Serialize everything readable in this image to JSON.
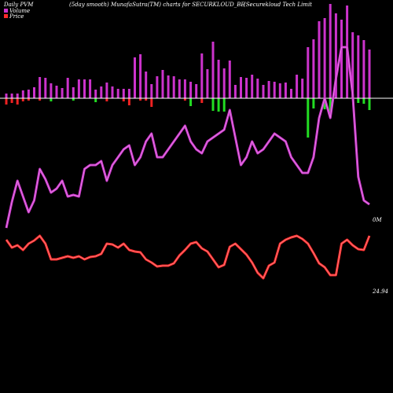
{
  "header": {
    "left": "Daily PVM",
    "center": "(5day smooth) MunafaSutra(TM) charts for SECURKLOUD_BE",
    "right": "(Securekloud Tech Limit"
  },
  "legend": {
    "volume_label": "Volume",
    "price_label": "Price",
    "volume_color": "#cc33cc",
    "price_color": "#ff2a2a"
  },
  "end_labels": {
    "volume_end": "0M",
    "price_end": "24.94"
  },
  "colors": {
    "background": "#000000",
    "up_bar": "#cc33cc",
    "positive_diff": "#22dd22",
    "negative_diff": "#ee2222",
    "volume_line": "#cc33cc",
    "price_line": "#ff2a2a",
    "baseline": "#ffffff"
  },
  "chart_data": {
    "type": "bar",
    "title": "",
    "n_points": 66,
    "volume_bars": [
      6,
      6,
      6,
      10,
      11,
      14,
      27,
      26,
      19,
      16,
      13,
      26,
      14,
      24,
      24,
      24,
      11,
      15,
      20,
      15,
      12,
      12,
      12,
      52,
      56,
      34,
      18,
      28,
      36,
      29,
      28,
      24,
      24,
      21,
      18,
      57,
      37,
      72,
      49,
      38,
      48,
      17,
      27,
      26,
      30,
      25,
      17,
      22,
      21,
      19,
      20,
      12,
      30,
      25,
      65,
      75,
      98,
      102,
      120,
      108,
      100,
      118,
      84,
      80,
      74,
      62
    ],
    "diff_bars": [
      -8,
      -6,
      -8,
      -4,
      -3,
      0,
      -3,
      0,
      4,
      0,
      0,
      0,
      3,
      0,
      0,
      0,
      5,
      0,
      -4,
      0,
      0,
      -4,
      -9,
      0,
      -3,
      -3,
      -11,
      0,
      0,
      0,
      0,
      0,
      -3,
      10,
      0,
      -6,
      0,
      16,
      17,
      17,
      0,
      0,
      0,
      0,
      0,
      0,
      0,
      0,
      0,
      0,
      0,
      0,
      0,
      0,
      50,
      13,
      0,
      14,
      22,
      0,
      0,
      0,
      0,
      6,
      7,
      15
    ],
    "volume_line": [
      290,
      257,
      230,
      250,
      270,
      255,
      215,
      228,
      245,
      240,
      230,
      250,
      248,
      250,
      215,
      210,
      210,
      205,
      230,
      210,
      200,
      190,
      185,
      210,
      200,
      180,
      170,
      200,
      200,
      190,
      180,
      170,
      160,
      180,
      190,
      195,
      180,
      175,
      170,
      165,
      140,
      175,
      210,
      200,
      180,
      195,
      190,
      180,
      170,
      175,
      180,
      200,
      210,
      220,
      220,
      200,
      150,
      125,
      150,
      100,
      60,
      60,
      120,
      225,
      255,
      260
    ],
    "price_line": [
      305,
      315,
      312,
      318,
      310,
      306,
      300,
      310,
      330,
      330,
      328,
      326,
      328,
      326,
      330,
      327,
      326,
      323,
      310,
      311,
      315,
      310,
      318,
      320,
      321,
      330,
      334,
      339,
      338,
      338,
      335,
      325,
      318,
      310,
      308,
      316,
      320,
      330,
      340,
      337,
      314,
      310,
      317,
      324,
      334,
      347,
      354,
      338,
      334,
      310,
      305,
      302,
      300,
      304,
      310,
      322,
      335,
      340,
      350,
      350,
      310,
      305,
      312,
      317,
      318,
      300
    ],
    "legend_position": "top-left"
  }
}
